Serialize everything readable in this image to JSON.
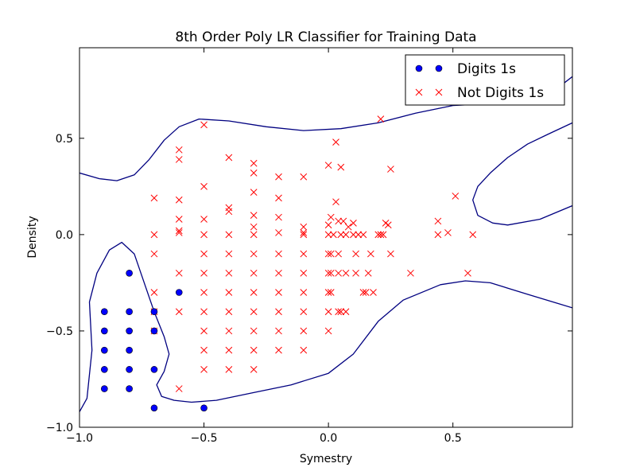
{
  "chart_data": {
    "type": "scatter",
    "title": "8th Order Poly LR Classifier for Training Data",
    "xlabel": "Symestry",
    "ylabel": "Density",
    "xlim": [
      -1.0,
      0.98
    ],
    "ylim": [
      -1.0,
      0.97
    ],
    "xticks": [
      -1.0,
      -0.5,
      0.0,
      0.5
    ],
    "xtick_labels": [
      "−1.0",
      "−0.5",
      "0.0",
      "0.5"
    ],
    "yticks": [
      -1.0,
      -0.5,
      0.0,
      0.5
    ],
    "ytick_labels": [
      "−1.0",
      "−0.5",
      "0.0",
      "0.5"
    ],
    "grid": false,
    "legend_position": "top-right",
    "series": [
      {
        "name": "Digits 1s",
        "marker": "circle",
        "color": "#0000ff",
        "points": [
          [
            -0.8,
            -0.2
          ],
          [
            -0.9,
            -0.4
          ],
          [
            -0.8,
            -0.4
          ],
          [
            -0.7,
            -0.4
          ],
          [
            -0.9,
            -0.5
          ],
          [
            -0.8,
            -0.5
          ],
          [
            -0.7,
            -0.5
          ],
          [
            -0.9,
            -0.6
          ],
          [
            -0.8,
            -0.6
          ],
          [
            -0.9,
            -0.7
          ],
          [
            -0.8,
            -0.7
          ],
          [
            -0.7,
            -0.7
          ],
          [
            -0.9,
            -0.8
          ],
          [
            -0.8,
            -0.8
          ],
          [
            -0.7,
            -0.9
          ],
          [
            -0.5,
            -0.9
          ],
          [
            -0.6,
            -0.3
          ]
        ]
      },
      {
        "name": "Not Digits 1s",
        "marker": "x",
        "color": "#ff0000",
        "points": [
          [
            -0.5,
            0.57
          ],
          [
            -0.6,
            0.44
          ],
          [
            -0.6,
            0.39
          ],
          [
            -0.4,
            0.4
          ],
          [
            -0.3,
            0.37
          ],
          [
            -0.3,
            0.32
          ],
          [
            -0.2,
            0.3
          ],
          [
            -0.1,
            0.3
          ],
          [
            0.0,
            0.36
          ],
          [
            0.03,
            0.48
          ],
          [
            0.05,
            0.35
          ],
          [
            0.21,
            0.6
          ],
          [
            0.25,
            0.34
          ],
          [
            -0.5,
            0.25
          ],
          [
            -0.3,
            0.22
          ],
          [
            -0.7,
            0.19
          ],
          [
            -0.6,
            0.18
          ],
          [
            -0.2,
            0.19
          ],
          [
            -0.4,
            0.14
          ],
          [
            -0.4,
            0.12
          ],
          [
            0.03,
            0.17
          ],
          [
            0.51,
            0.2
          ],
          [
            -0.6,
            0.08
          ],
          [
            -0.5,
            0.08
          ],
          [
            -0.3,
            0.1
          ],
          [
            -0.2,
            0.09
          ],
          [
            0.01,
            0.09
          ],
          [
            0.04,
            0.07
          ],
          [
            0.06,
            0.07
          ],
          [
            0.1,
            0.06
          ],
          [
            0.23,
            0.06
          ],
          [
            0.44,
            0.07
          ],
          [
            -0.3,
            0.04
          ],
          [
            -0.1,
            0.04
          ],
          [
            0.0,
            0.05
          ],
          [
            0.08,
            0.04
          ],
          [
            0.24,
            0.05
          ],
          [
            -0.7,
            0.0
          ],
          [
            -0.6,
            0.01
          ],
          [
            -0.6,
            0.02
          ],
          [
            -0.5,
            0.0
          ],
          [
            -0.4,
            0.0
          ],
          [
            -0.3,
            0.0
          ],
          [
            -0.2,
            0.01
          ],
          [
            -0.1,
            0.0
          ],
          [
            -0.1,
            0.01
          ],
          [
            0.0,
            0.0
          ],
          [
            0.02,
            0.0
          ],
          [
            0.05,
            0.0
          ],
          [
            0.07,
            0.0
          ],
          [
            0.1,
            0.0
          ],
          [
            0.12,
            0.0
          ],
          [
            0.14,
            0.0
          ],
          [
            0.2,
            0.0
          ],
          [
            0.21,
            0.0
          ],
          [
            0.22,
            0.0
          ],
          [
            0.44,
            0.0
          ],
          [
            0.48,
            0.01
          ],
          [
            0.58,
            0.0
          ],
          [
            -0.7,
            -0.1
          ],
          [
            -0.5,
            -0.1
          ],
          [
            -0.4,
            -0.1
          ],
          [
            -0.3,
            -0.1
          ],
          [
            -0.2,
            -0.1
          ],
          [
            -0.1,
            -0.1
          ],
          [
            0.0,
            -0.1
          ],
          [
            0.01,
            -0.1
          ],
          [
            0.04,
            -0.1
          ],
          [
            0.11,
            -0.1
          ],
          [
            0.17,
            -0.1
          ],
          [
            0.25,
            -0.1
          ],
          [
            -0.6,
            -0.2
          ],
          [
            -0.5,
            -0.2
          ],
          [
            -0.4,
            -0.2
          ],
          [
            -0.3,
            -0.2
          ],
          [
            -0.2,
            -0.2
          ],
          [
            -0.1,
            -0.2
          ],
          [
            0.0,
            -0.2
          ],
          [
            0.01,
            -0.2
          ],
          [
            0.04,
            -0.2
          ],
          [
            0.07,
            -0.2
          ],
          [
            0.11,
            -0.2
          ],
          [
            0.16,
            -0.2
          ],
          [
            0.33,
            -0.2
          ],
          [
            0.56,
            -0.2
          ],
          [
            -0.7,
            -0.3
          ],
          [
            -0.5,
            -0.3
          ],
          [
            -0.4,
            -0.3
          ],
          [
            -0.3,
            -0.3
          ],
          [
            -0.2,
            -0.3
          ],
          [
            -0.1,
            -0.3
          ],
          [
            0.0,
            -0.3
          ],
          [
            0.01,
            -0.3
          ],
          [
            0.14,
            -0.3
          ],
          [
            0.15,
            -0.3
          ],
          [
            0.18,
            -0.3
          ],
          [
            -0.7,
            -0.4
          ],
          [
            -0.6,
            -0.4
          ],
          [
            -0.5,
            -0.4
          ],
          [
            -0.4,
            -0.4
          ],
          [
            -0.3,
            -0.4
          ],
          [
            -0.2,
            -0.4
          ],
          [
            -0.1,
            -0.4
          ],
          [
            0.0,
            -0.4
          ],
          [
            0.04,
            -0.4
          ],
          [
            0.05,
            -0.4
          ],
          [
            0.07,
            -0.4
          ],
          [
            -0.7,
            -0.5
          ],
          [
            -0.5,
            -0.5
          ],
          [
            -0.4,
            -0.5
          ],
          [
            -0.3,
            -0.5
          ],
          [
            -0.2,
            -0.5
          ],
          [
            -0.1,
            -0.5
          ],
          [
            0.0,
            -0.5
          ],
          [
            -0.5,
            -0.6
          ],
          [
            -0.4,
            -0.6
          ],
          [
            -0.3,
            -0.6
          ],
          [
            -0.2,
            -0.6
          ],
          [
            -0.1,
            -0.6
          ],
          [
            -0.5,
            -0.7
          ],
          [
            -0.4,
            -0.7
          ],
          [
            -0.3,
            -0.7
          ],
          [
            -0.6,
            -0.8
          ]
        ]
      }
    ],
    "decision_boundary": {
      "color": "#000080",
      "curves": [
        [
          [
            -1.0,
            0.32
          ],
          [
            -0.92,
            0.29
          ],
          [
            -0.85,
            0.28
          ],
          [
            -0.78,
            0.31
          ],
          [
            -0.72,
            0.39
          ],
          [
            -0.66,
            0.49
          ],
          [
            -0.6,
            0.56
          ],
          [
            -0.52,
            0.6
          ],
          [
            -0.4,
            0.59
          ],
          [
            -0.25,
            0.56
          ],
          [
            -0.1,
            0.54
          ],
          [
            0.05,
            0.55
          ],
          [
            0.2,
            0.58
          ],
          [
            0.35,
            0.63
          ],
          [
            0.5,
            0.67
          ],
          [
            0.65,
            0.68
          ],
          [
            0.8,
            0.7
          ],
          [
            0.9,
            0.74
          ],
          [
            0.98,
            0.82
          ]
        ],
        [
          [
            -1.0,
            -0.92
          ],
          [
            -0.97,
            -0.85
          ],
          [
            -0.95,
            -0.6
          ],
          [
            -0.96,
            -0.35
          ],
          [
            -0.93,
            -0.2
          ],
          [
            -0.88,
            -0.08
          ],
          [
            -0.83,
            -0.04
          ],
          [
            -0.78,
            -0.1
          ],
          [
            -0.74,
            -0.25
          ],
          [
            -0.7,
            -0.4
          ],
          [
            -0.66,
            -0.53
          ],
          [
            -0.64,
            -0.62
          ],
          [
            -0.66,
            -0.71
          ],
          [
            -0.69,
            -0.78
          ],
          [
            -0.67,
            -0.84
          ],
          [
            -0.62,
            -0.86
          ],
          [
            -0.55,
            -0.87
          ],
          [
            -0.45,
            -0.86
          ],
          [
            -0.3,
            -0.82
          ],
          [
            -0.15,
            -0.78
          ],
          [
            0.0,
            -0.72
          ],
          [
            0.1,
            -0.62
          ],
          [
            0.2,
            -0.45
          ],
          [
            0.3,
            -0.34
          ],
          [
            0.45,
            -0.26
          ],
          [
            0.55,
            -0.24
          ],
          [
            0.65,
            -0.25
          ],
          [
            0.8,
            -0.31
          ],
          [
            0.98,
            -0.38
          ]
        ],
        [
          [
            0.98,
            0.15
          ],
          [
            0.85,
            0.08
          ],
          [
            0.72,
            0.05
          ],
          [
            0.66,
            0.06
          ],
          [
            0.6,
            0.1
          ],
          [
            0.58,
            0.18
          ],
          [
            0.6,
            0.25
          ],
          [
            0.65,
            0.32
          ],
          [
            0.72,
            0.4
          ],
          [
            0.8,
            0.47
          ],
          [
            0.88,
            0.52
          ],
          [
            0.98,
            0.58
          ]
        ]
      ]
    }
  }
}
